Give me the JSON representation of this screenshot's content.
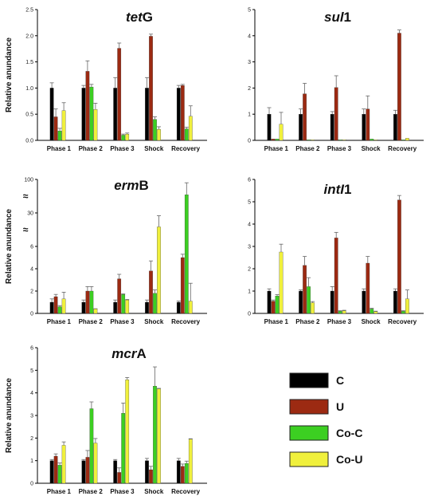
{
  "colors": {
    "C": "#000000",
    "U": "#9c2a12",
    "Co-C": "#3ccf22",
    "Co-U": "#f0f03c"
  },
  "legend": {
    "position": "bottom-right",
    "items": [
      "C",
      "U",
      "Co-C",
      "Co-U"
    ]
  },
  "chart_data": [
    {
      "type": "bar",
      "title_italic": "tet",
      "title_plain": "G",
      "ylabel": "Relative anundance",
      "categories": [
        "Phase 1",
        "Phase 2",
        "Phase 3",
        "Shock",
        "Recovery"
      ],
      "ylim": [
        0,
        2.5
      ],
      "yticks": [
        "0.0",
        "0.5",
        "1.0",
        "1.5",
        "2.0",
        "2.5"
      ],
      "series": [
        {
          "name": "C",
          "values": [
            1.0,
            1.0,
            1.0,
            1.0,
            1.0
          ],
          "errors": [
            0.1,
            0.05,
            0.2,
            0.2,
            0.05
          ]
        },
        {
          "name": "U",
          "values": [
            0.45,
            1.32,
            1.76,
            1.99,
            1.05
          ],
          "errors": [
            0.15,
            0.2,
            0.1,
            0.04,
            0.02
          ]
        },
        {
          "name": "Co-C",
          "values": [
            0.18,
            1.02,
            0.1,
            0.4,
            0.22
          ],
          "errors": [
            0.05,
            0.05,
            0.02,
            0.05,
            0.03
          ]
        },
        {
          "name": "Co-U",
          "values": [
            0.57,
            0.59,
            0.12,
            0.21,
            0.46
          ],
          "errors": [
            0.15,
            0.12,
            0.02,
            0.05,
            0.2
          ]
        }
      ]
    },
    {
      "type": "bar",
      "title_italic": "sul",
      "title_plain": "1",
      "ylabel": "",
      "categories": [
        "Phase 1",
        "Phase 2",
        "Phase 3",
        "Shock",
        "Recovery"
      ],
      "ylim": [
        0,
        5
      ],
      "yticks": [
        "0",
        "1",
        "2",
        "3",
        "4",
        "5"
      ],
      "series": [
        {
          "name": "C",
          "values": [
            1.0,
            1.0,
            1.0,
            1.0,
            1.0
          ],
          "errors": [
            0.25,
            0.2,
            0.1,
            0.2,
            0.15
          ]
        },
        {
          "name": "U",
          "values": [
            0.05,
            1.78,
            2.02,
            1.2,
            4.1
          ],
          "errors": [
            0,
            0.4,
            0.45,
            0.5,
            0.12
          ]
        },
        {
          "name": "Co-C",
          "values": [
            0.05,
            0.02,
            0.02,
            0.05,
            0.02
          ],
          "errors": [
            0,
            0,
            0,
            0,
            0
          ]
        },
        {
          "name": "Co-U",
          "values": [
            0.62,
            0.02,
            0.02,
            0.02,
            0.08
          ],
          "errors": [
            0.45,
            0,
            0,
            0,
            0
          ]
        }
      ]
    },
    {
      "type": "bar",
      "title_italic": "erm",
      "title_plain": "B",
      "ylabel": "Relative anundance",
      "categories": [
        "Phase 1",
        "Phase 2",
        "Phase 3",
        "Shock",
        "Recovery"
      ],
      "scale": "broken axis",
      "yticks": [
        "0",
        "2",
        "4",
        "6",
        "30",
        "100"
      ],
      "series": [
        {
          "name": "C",
          "values": [
            1.0,
            1.0,
            1.0,
            1.0,
            1.0
          ],
          "errors": [
            0.3,
            0.2,
            0.2,
            0.2,
            0.1
          ]
        },
        {
          "name": "U",
          "values": [
            1.5,
            2.0,
            3.1,
            3.8,
            5.0
          ],
          "errors": [
            0.2,
            0.4,
            0.4,
            0.9,
            0.3
          ]
        },
        {
          "name": "Co-C",
          "values": [
            0.6,
            2.0,
            1.7,
            1.8,
            68
          ],
          "errors": [
            0.1,
            0.4,
            0.05,
            0.3,
            25
          ]
        },
        {
          "name": "Co-U",
          "values": [
            1.3,
            0.4,
            1.2,
            20,
            1.1
          ],
          "errors": [
            0.6,
            0.02,
            0.05,
            8,
            1.6
          ]
        }
      ]
    },
    {
      "type": "bar",
      "title_italic": "intI",
      "title_plain": "1",
      "ylabel": "",
      "categories": [
        "Phase 1",
        "Phase 2",
        "Phase 3",
        "Shock",
        "Recovery"
      ],
      "ylim": [
        0,
        6
      ],
      "yticks": [
        "0",
        "1",
        "2",
        "3",
        "4",
        "5",
        "6"
      ],
      "series": [
        {
          "name": "C",
          "values": [
            1.0,
            1.0,
            1.0,
            1.0,
            1.0
          ],
          "errors": [
            0.1,
            0.05,
            0.2,
            0.1,
            0.1
          ]
        },
        {
          "name": "U",
          "values": [
            0.55,
            2.15,
            3.38,
            2.25,
            5.08
          ],
          "errors": [
            0.05,
            0.4,
            0.25,
            0.3,
            0.2
          ]
        },
        {
          "name": "Co-C",
          "values": [
            0.78,
            1.2,
            0.1,
            0.2,
            0.1
          ],
          "errors": [
            0.06,
            0.4,
            0.02,
            0.03,
            0.02
          ]
        },
        {
          "name": "Co-U",
          "values": [
            2.75,
            0.48,
            0.12,
            0.08,
            0.65
          ],
          "errors": [
            0.35,
            0.05,
            0.02,
            0.02,
            0.4
          ]
        }
      ]
    },
    {
      "type": "bar",
      "title_italic": "mcr",
      "title_plain": "A",
      "ylabel": "Relative anundance",
      "categories": [
        "Phase 1",
        "Phase 2",
        "Phase 3",
        "Shock",
        "Recovery"
      ],
      "ylim": [
        0,
        6
      ],
      "yticks": [
        "0",
        "1",
        "2",
        "3",
        "4",
        "5",
        "6"
      ],
      "series": [
        {
          "name": "C",
          "values": [
            1.0,
            1.0,
            1.0,
            1.0,
            1.0
          ],
          "errors": [
            0.05,
            0.05,
            0.05,
            0.1,
            0.1
          ]
        },
        {
          "name": "U",
          "values": [
            1.2,
            1.15,
            0.48,
            0.6,
            0.75
          ],
          "errors": [
            0.1,
            0.3,
            0.2,
            0.15,
            0.1
          ]
        },
        {
          "name": "Co-C",
          "values": [
            0.8,
            3.3,
            3.1,
            4.3,
            0.88
          ],
          "errors": [
            0.1,
            0.3,
            0.45,
            0.85,
            0.1
          ]
        },
        {
          "name": "Co-U",
          "values": [
            1.68,
            1.78,
            4.58,
            4.18,
            1.95
          ],
          "errors": [
            0.15,
            0.2,
            0.1,
            0.02,
            0.02
          ]
        }
      ]
    }
  ]
}
